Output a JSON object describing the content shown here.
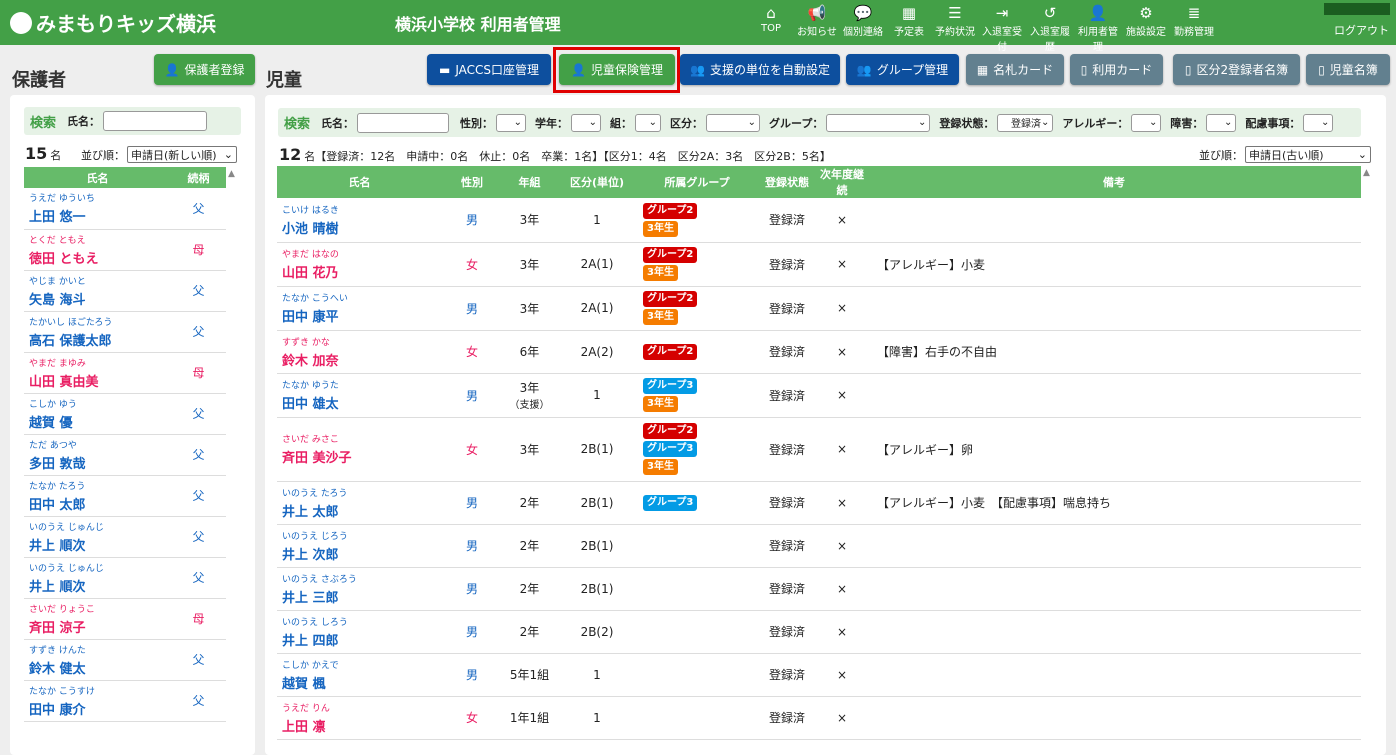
{
  "header": {
    "logo": "みまもりキッズ横浜",
    "title": "横浜小学校 利用者管理",
    "logout": "ログアウト",
    "nav": [
      {
        "label": "TOP",
        "icon": "⌂",
        "name": "home"
      },
      {
        "label": "お知らせ",
        "icon": "📢",
        "name": "megaphone"
      },
      {
        "label": "個別連絡",
        "icon": "💬",
        "name": "chat"
      },
      {
        "label": "予定表",
        "icon": "▦",
        "name": "calendar"
      },
      {
        "label": "予約状況",
        "icon": "☰",
        "name": "list"
      },
      {
        "label": "入退室受付",
        "icon": "⇥",
        "name": "sign-in"
      },
      {
        "label": "入退室履歴",
        "icon": "↺",
        "name": "history"
      },
      {
        "label": "利用者管理",
        "icon": "👤",
        "name": "user-edit"
      },
      {
        "label": "施設設定",
        "icon": "⚙",
        "name": "gear"
      },
      {
        "label": "勤務管理",
        "icon": "≣",
        "name": "server"
      }
    ]
  },
  "guardian": {
    "title": "保護者",
    "register": "保護者登録",
    "search_label": "検索",
    "name_label": "氏名：",
    "count": "15",
    "count_unit": "名",
    "sort_label": "並び順：",
    "sort_value": "申請日(新しい順)",
    "columns": [
      "氏名",
      "続柄"
    ],
    "rows": [
      {
        "kana": "うえだ ゆういち",
        "name": "上田 悠一",
        "rel": "父",
        "g": "m"
      },
      {
        "kana": "とくだ ともえ",
        "name": "徳田 ともえ",
        "rel": "母",
        "g": "f"
      },
      {
        "kana": "やじま かいと",
        "name": "矢島 海斗",
        "rel": "父",
        "g": "m"
      },
      {
        "kana": "たかいし ほごたろう",
        "name": "高石 保護太郎",
        "rel": "父",
        "g": "m"
      },
      {
        "kana": "やまだ まゆみ",
        "name": "山田 真由美",
        "rel": "母",
        "g": "f"
      },
      {
        "kana": "こしか ゆう",
        "name": "越賀 優",
        "rel": "父",
        "g": "m"
      },
      {
        "kana": "ただ あつや",
        "name": "多田 敦哉",
        "rel": "父",
        "g": "m"
      },
      {
        "kana": "たなか たろう",
        "name": "田中 太郎",
        "rel": "父",
        "g": "m"
      },
      {
        "kana": "いのうえ じゅんじ",
        "name": "井上 順次",
        "rel": "父",
        "g": "m"
      },
      {
        "kana": "いのうえ じゅんじ",
        "name": "井上 順次",
        "rel": "父",
        "g": "m"
      },
      {
        "kana": "さいだ りょうこ",
        "name": "斉田 涼子",
        "rel": "母",
        "g": "f"
      },
      {
        "kana": "すずき けんた",
        "name": "鈴木 健太",
        "rel": "父",
        "g": "m"
      },
      {
        "kana": "たなか こうすけ",
        "name": "田中 康介",
        "rel": "父",
        "g": "m"
      }
    ]
  },
  "children": {
    "title": "児童",
    "buttons": [
      {
        "label": "JACCS口座管理",
        "icon": "▬",
        "cls": "navy"
      },
      {
        "label": "児童保険管理",
        "icon": "👤",
        "cls": "green"
      },
      {
        "label": "支援の単位を自動設定",
        "icon": "👥",
        "cls": "navy"
      },
      {
        "label": "グループ管理",
        "icon": "👥",
        "cls": "navy"
      },
      {
        "label": "名札カード",
        "icon": "▦",
        "cls": "gray"
      },
      {
        "label": "利用カード",
        "icon": "▯",
        "cls": "gray"
      },
      {
        "label": "区分2登録者名簿",
        "icon": "▯",
        "cls": "gray"
      },
      {
        "label": "児童名簿",
        "icon": "▯",
        "cls": "gray"
      }
    ],
    "search_label": "検索",
    "filters": {
      "name": "氏名：",
      "gender": "性別：",
      "grade": "学年：",
      "class": "組：",
      "division": "区分：",
      "group": "グループ：",
      "status": "登録状態：",
      "status_value": "登録済",
      "allergy": "アレルギー：",
      "disability": "障害：",
      "consideration": "配慮事項："
    },
    "count": "12",
    "summary": "名【登録済：12名　申請中：0名　休止：0名　卒業：1名】【区分1：4名　区分2A：3名　区分2B：5名】",
    "sort_label": "並び順：",
    "sort_value": "申請日(古い順)",
    "columns": [
      "氏名",
      "性別",
      "年組",
      "区分(単位)",
      "所属グループ",
      "登録状態",
      "次年度継続",
      "備考"
    ],
    "rows": [
      {
        "kana": "こいけ はるき",
        "name": "小池 晴樹",
        "gender": "男",
        "g": "m",
        "grade": "3年",
        "unit": "1",
        "groups": [
          "グループ2",
          "3年生"
        ],
        "status": "登録済",
        "next": "×",
        "note": ""
      },
      {
        "kana": "やまだ はなの",
        "name": "山田 花乃",
        "gender": "女",
        "g": "f",
        "grade": "3年",
        "unit": "2A(1)",
        "groups": [
          "グループ2",
          "3年生"
        ],
        "status": "登録済",
        "next": "×",
        "note": "【アレルギー】小麦"
      },
      {
        "kana": "たなか こうへい",
        "name": "田中 康平",
        "gender": "男",
        "g": "m",
        "grade": "3年",
        "unit": "2A(1)",
        "groups": [
          "グループ2",
          "3年生"
        ],
        "status": "登録済",
        "next": "×",
        "note": ""
      },
      {
        "kana": "すずき かな",
        "name": "鈴木 加奈",
        "gender": "女",
        "g": "f",
        "grade": "6年",
        "unit": "2A(2)",
        "groups": [
          "グループ2"
        ],
        "status": "登録済",
        "next": "×",
        "note": "【障害】右手の不自由"
      },
      {
        "kana": "たなか ゆうた",
        "name": "田中 雄太",
        "gender": "男",
        "g": "m",
        "grade": "3年",
        "grade2": "（支援）",
        "unit": "1",
        "groups": [
          "グループ3",
          "3年生"
        ],
        "status": "登録済",
        "next": "×",
        "note": ""
      },
      {
        "kana": "さいだ みさこ",
        "name": "斉田 美沙子",
        "gender": "女",
        "g": "f",
        "grade": "3年",
        "unit": "2B(1)",
        "groups": [
          "グループ2",
          "グループ3",
          "3年生"
        ],
        "status": "登録済",
        "next": "×",
        "note": "【アレルギー】卵"
      },
      {
        "kana": "いのうえ たろう",
        "name": "井上 太郎",
        "gender": "男",
        "g": "m",
        "grade": "2年",
        "unit": "2B(1)",
        "groups": [
          "グループ3"
        ],
        "status": "登録済",
        "next": "×",
        "note": "【アレルギー】小麦　【配慮事項】喘息持ち"
      },
      {
        "kana": "いのうえ じろう",
        "name": "井上 次郎",
        "gender": "男",
        "g": "m",
        "grade": "2年",
        "unit": "2B(1)",
        "groups": [],
        "status": "登録済",
        "next": "×",
        "note": ""
      },
      {
        "kana": "いのうえ さぶろう",
        "name": "井上 三郎",
        "gender": "男",
        "g": "m",
        "grade": "2年",
        "unit": "2B(1)",
        "groups": [],
        "status": "登録済",
        "next": "×",
        "note": ""
      },
      {
        "kana": "いのうえ しろう",
        "name": "井上 四郎",
        "gender": "男",
        "g": "m",
        "grade": "2年",
        "unit": "2B(2)",
        "groups": [],
        "status": "登録済",
        "next": "×",
        "note": ""
      },
      {
        "kana": "こしか かえで",
        "name": "越賀 楓",
        "gender": "男",
        "g": "m",
        "grade": "5年1組",
        "unit": "1",
        "groups": [],
        "status": "登録済",
        "next": "×",
        "note": ""
      },
      {
        "kana": "うえだ りん",
        "name": "上田 凛",
        "gender": "女",
        "g": "f",
        "grade": "1年1組",
        "unit": "1",
        "groups": [],
        "status": "登録済",
        "next": "×",
        "note": ""
      }
    ]
  },
  "colors": {
    "header": "#43a047",
    "navy": "#0d4f9e",
    "gray": "#62808f",
    "group2": "#d50000",
    "group3": "#039be5",
    "grade_badge": "#f57c00",
    "male": "#1565c0",
    "female": "#e91e63",
    "highlight": "#e00000"
  }
}
